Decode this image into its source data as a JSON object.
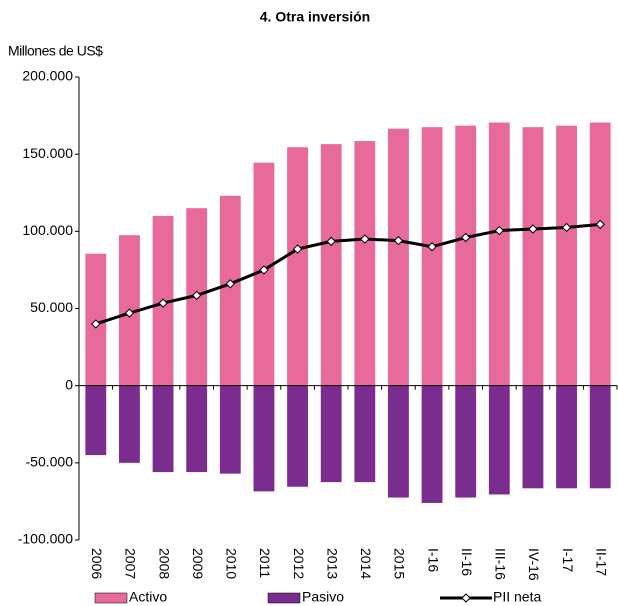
{
  "chart_data": {
    "type": "bar",
    "title": "4. Otra inversión",
    "y_label": "Millones de US$",
    "categories": [
      "2006",
      "2007",
      "2008",
      "2009",
      "2010",
      "2011",
      "2012",
      "2013",
      "2014",
      "2015",
      "I-16",
      "II-16",
      "III-16",
      "IV-16",
      "I-17",
      "II-17"
    ],
    "series": [
      {
        "name": "Activo",
        "color": "#e76a9b",
        "type": "bar",
        "values": [
          85500,
          97500,
          110000,
          115000,
          123000,
          144500,
          154500,
          156500,
          158500,
          166500,
          167500,
          168500,
          170500,
          167500,
          168500,
          170500
        ]
      },
      {
        "name": "Pasivo",
        "color": "#7a2d8e",
        "type": "bar",
        "values": [
          -45000,
          -50000,
          -56000,
          -56000,
          -57000,
          -68500,
          -65500,
          -62500,
          -62500,
          -72500,
          -76000,
          -72500,
          -70500,
          -66500,
          -66500,
          -66500
        ]
      },
      {
        "name": "PII neta",
        "color": "#000000",
        "type": "line",
        "values": [
          40000,
          47000,
          53500,
          58500,
          66000,
          75000,
          88500,
          93500,
          95000,
          94000,
          90000,
          96000,
          100500,
          101500,
          102500,
          104500
        ]
      }
    ],
    "ylim": [
      -100000,
      200000
    ],
    "yticks": [
      {
        "value": -100000,
        "label": "-100.000"
      },
      {
        "value": -50000,
        "label": "-50.000"
      },
      0,
      {
        "value": 50000,
        "label": "50.000"
      },
      {
        "value": 100000,
        "label": "100.000"
      },
      {
        "value": 150000,
        "label": "150.000"
      },
      {
        "value": 200000,
        "label": "200.000"
      }
    ]
  }
}
